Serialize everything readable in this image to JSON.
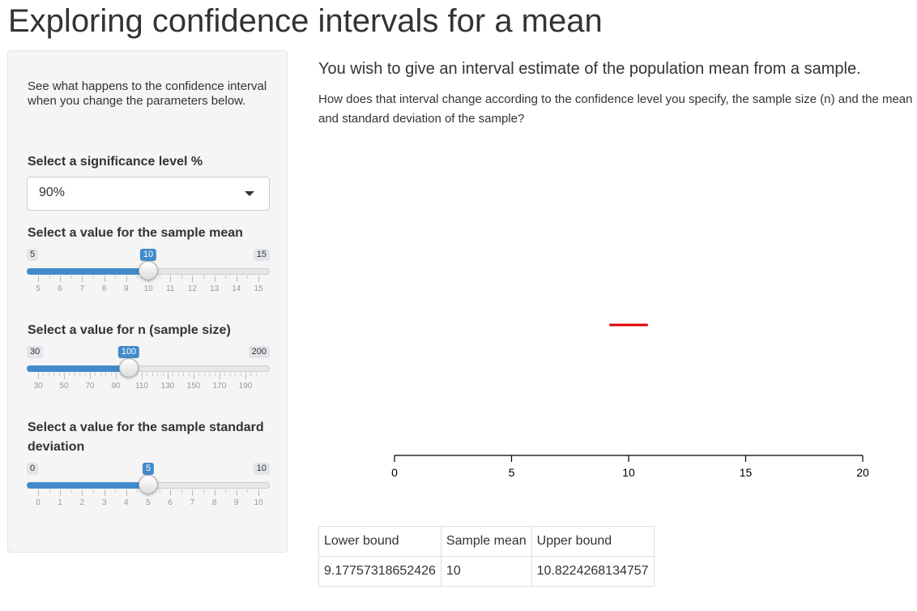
{
  "page": {
    "title": "Exploring confidence intervals for a mean"
  },
  "sidebar": {
    "intro": "See what happens to the confidence interval when you change the parameters below.",
    "significance": {
      "label": "Select a significance level %",
      "selected": "90%"
    },
    "sliders": [
      {
        "label": "Select a value for the sample mean",
        "min": 5,
        "max": 15,
        "value": 10,
        "step": 0.5,
        "ticks": [
          5,
          6,
          7,
          8,
          9,
          10,
          11,
          12,
          13,
          14,
          15
        ]
      },
      {
        "label": "Select a value for n (sample size)",
        "min": 30,
        "max": 200,
        "value": 100,
        "step": 4,
        "ticks": [
          30,
          50,
          70,
          90,
          110,
          130,
          150,
          170,
          190
        ]
      },
      {
        "label": "Select a value for the sample standard deviation",
        "min": 0,
        "max": 10,
        "value": 5,
        "step": 0.5,
        "ticks": [
          0,
          1,
          2,
          3,
          4,
          5,
          6,
          7,
          8,
          9,
          10
        ]
      }
    ]
  },
  "main": {
    "heading": "You wish to give an interval estimate of the population mean from a sample.",
    "description": "How does that interval change according to the confidence level you specify, the sample size (n) and the mean and standard deviation of the sample?"
  },
  "chart_data": {
    "type": "line",
    "xlim": [
      0,
      20
    ],
    "ticks": [
      "0",
      "5",
      "10",
      "15",
      "20"
    ],
    "interval": {
      "lower": 9.17757318652426,
      "upper": 10.8224268134757
    },
    "interval_color": "#dd0000",
    "grid": false
  },
  "results": {
    "headers": [
      "Lower bound",
      "Sample mean",
      "Upper bound"
    ],
    "row": [
      "9.17757318652426",
      "10",
      "10.8224268134757"
    ]
  },
  "colors": {
    "accent": "#428bca",
    "panel": "#f5f5f5"
  }
}
